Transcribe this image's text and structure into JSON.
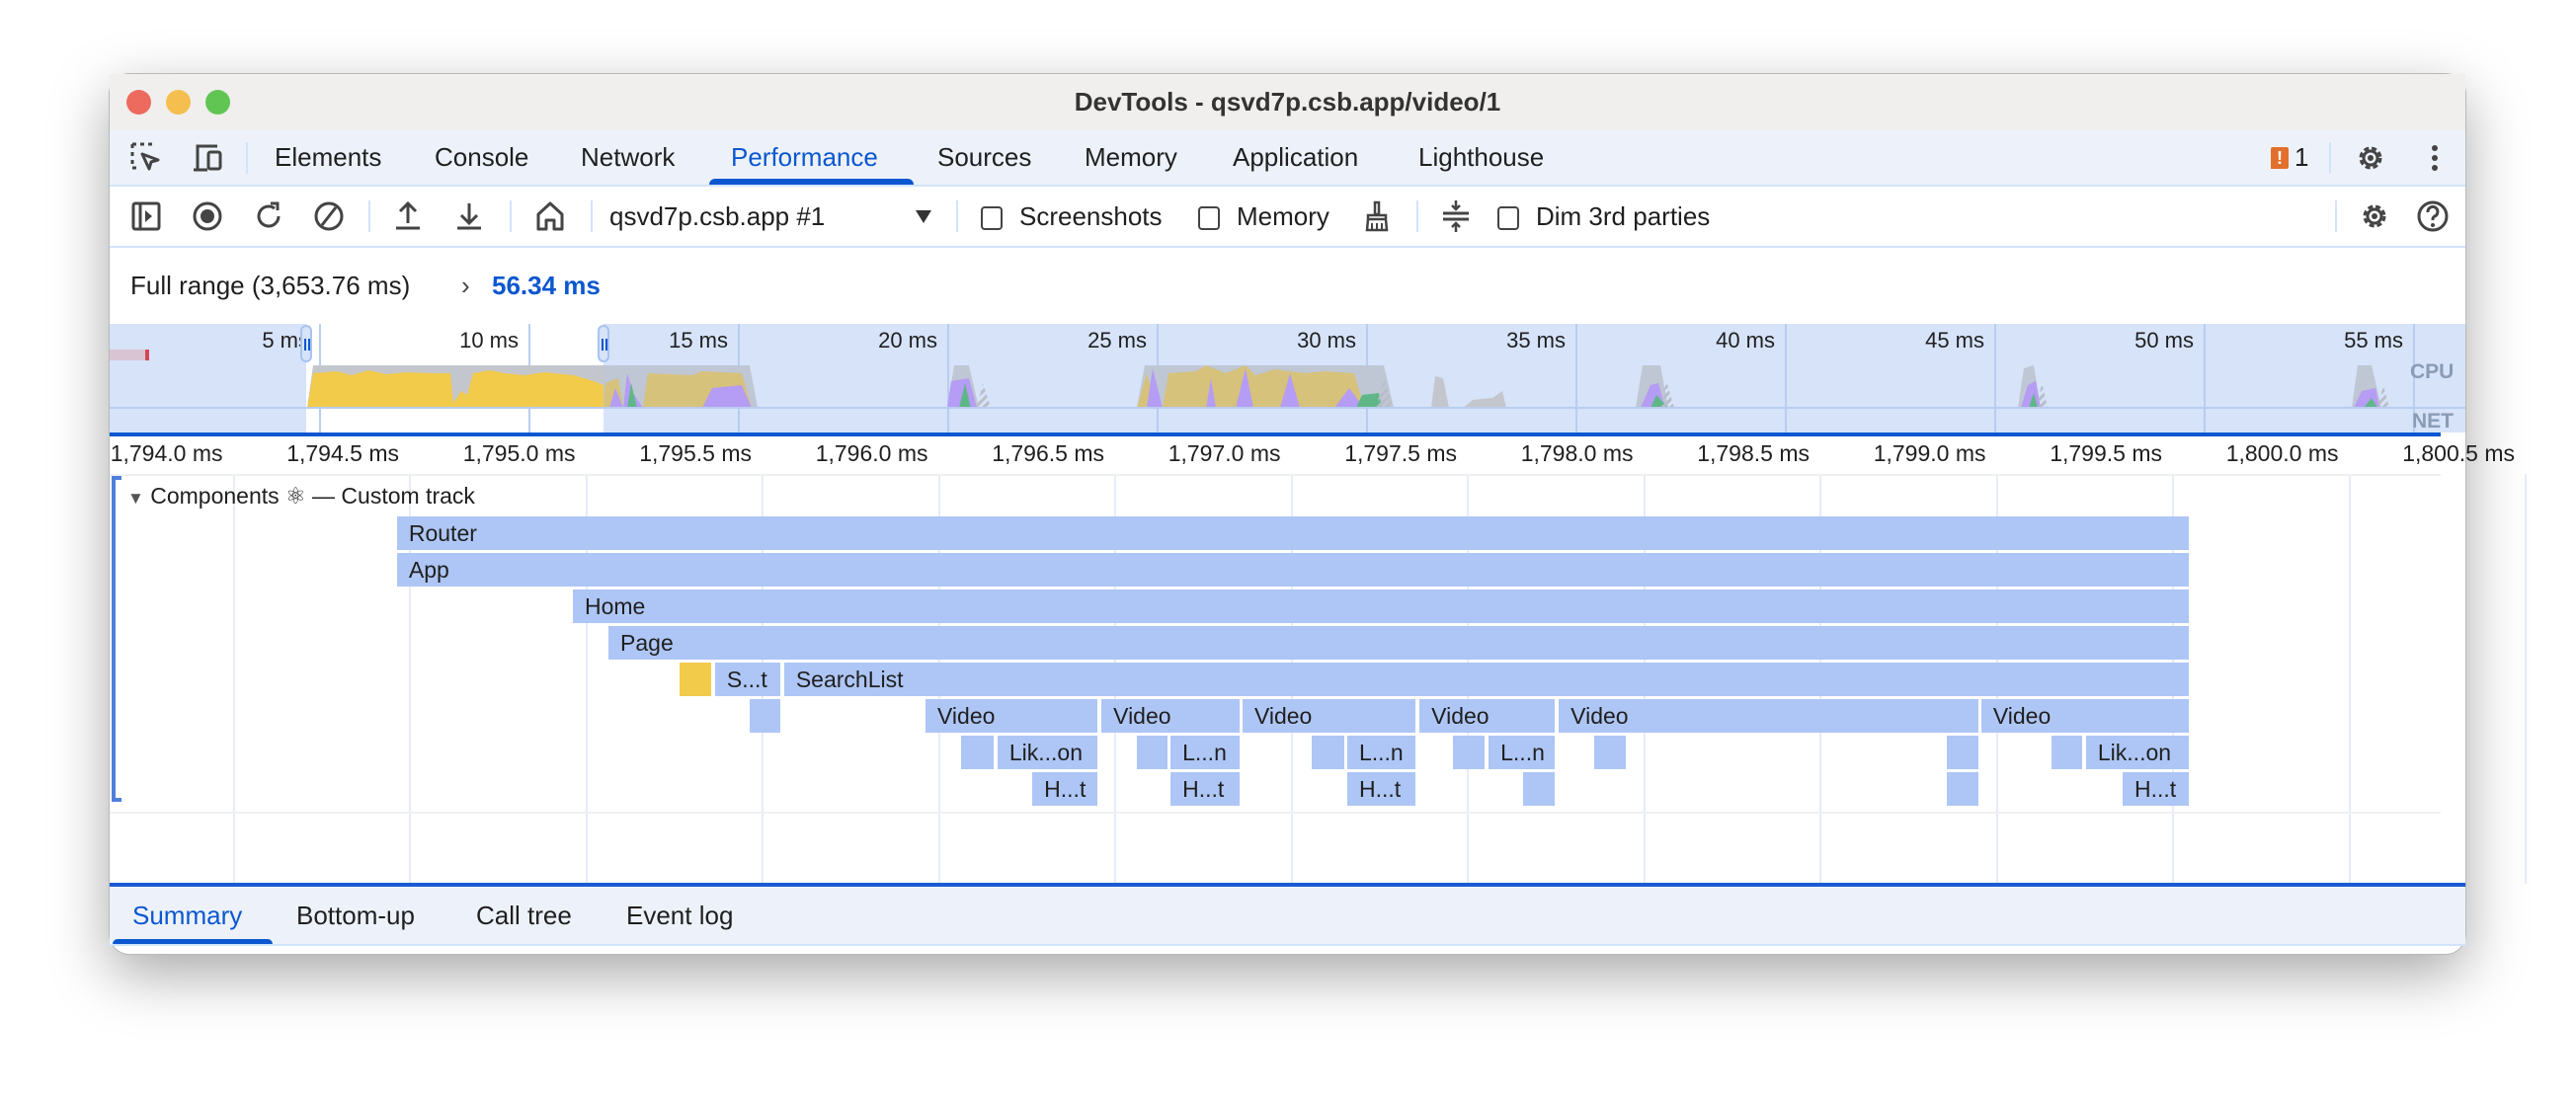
{
  "window": {
    "title": "DevTools - qsvd7p.csb.app/video/1"
  },
  "colors": {
    "accent": "#0b57d0",
    "bar": "#aec6f5",
    "highlight": "#f2cb4b",
    "close": "#ed6a5e",
    "minimize": "#f5bf4f",
    "zoom": "#61c554",
    "issue": "#e36f2c"
  },
  "tabs": [
    {
      "label": "Elements"
    },
    {
      "label": "Console"
    },
    {
      "label": "Network"
    },
    {
      "label": "Performance",
      "active": true
    },
    {
      "label": "Sources"
    },
    {
      "label": "Memory"
    },
    {
      "label": "Application"
    },
    {
      "label": "Lighthouse"
    }
  ],
  "tabbar_right": {
    "issues_count": "1",
    "icons": [
      "issue-icon",
      "settings-icon",
      "more-vert-icon"
    ]
  },
  "toolbar": {
    "icons": [
      "sidebar-toggle-icon",
      "record-icon",
      "reload-icon",
      "clear-icon",
      "upload-icon",
      "download-icon",
      "home-icon"
    ],
    "target_select": "qsvd7p.csb.app #1",
    "screenshots_label": "Screenshots",
    "screenshots_checked": false,
    "memory_label": "Memory",
    "memory_checked": false,
    "dim_label": "Dim 3rd parties",
    "dim_checked": false
  },
  "breadcrumb": {
    "full_range": "Full range (3,653.76 ms)",
    "separator": "›",
    "current": "56.34 ms"
  },
  "overview": {
    "ticks": [
      {
        "value": 5,
        "label": "5 ms"
      },
      {
        "value": 10,
        "label": "10 ms"
      },
      {
        "value": 15,
        "label": "15 ms"
      },
      {
        "value": 20,
        "label": "20 ms"
      },
      {
        "value": 25,
        "label": "25 ms"
      },
      {
        "value": 30,
        "label": "30 ms"
      },
      {
        "value": 35,
        "label": "35 ms"
      },
      {
        "value": 40,
        "label": "40 ms"
      },
      {
        "value": 45,
        "label": "45 ms"
      },
      {
        "value": 50,
        "label": "50 ms"
      },
      {
        "value": 55,
        "label": "55 ms"
      }
    ],
    "selection_ms": [
      4.7,
      11.8
    ],
    "cpu_label": "CPU",
    "net_label": "NET"
  },
  "ruler": {
    "ticks": [
      {
        "value": 1794.0,
        "label": "1,794.0 ms"
      },
      {
        "value": 1794.5,
        "label": "1,794.5 ms"
      },
      {
        "value": 1795.0,
        "label": "1,795.0 ms"
      },
      {
        "value": 1795.5,
        "label": "1,795.5 ms"
      },
      {
        "value": 1796.0,
        "label": "1,796.0 ms"
      },
      {
        "value": 1796.5,
        "label": "1,796.5 ms"
      },
      {
        "value": 1797.0,
        "label": "1,797.0 ms"
      },
      {
        "value": 1797.5,
        "label": "1,797.5 ms"
      },
      {
        "value": 1798.0,
        "label": "1,798.0 ms"
      },
      {
        "value": 1798.5,
        "label": "1,798.5 ms"
      },
      {
        "value": 1799.0,
        "label": "1,799.0 ms"
      },
      {
        "value": 1799.5,
        "label": "1,799.5 ms"
      },
      {
        "value": 1800.0,
        "label": "1,800.0 ms"
      },
      {
        "value": 1800.5,
        "label": "1,800.5 ms"
      }
    ]
  },
  "track": {
    "title": "Components ⚛ — Custom track",
    "rows": [
      [
        {
          "start": 1794.466,
          "end": 1799.553,
          "label": "Router"
        }
      ],
      [
        {
          "start": 1794.466,
          "end": 1799.553,
          "label": "App"
        }
      ],
      [
        {
          "start": 1794.965,
          "end": 1799.553,
          "label": "Home"
        }
      ],
      [
        {
          "start": 1795.066,
          "end": 1799.553,
          "label": "Page"
        }
      ],
      [
        {
          "start": 1795.268,
          "end": 1795.363,
          "label": "",
          "color": "#f2cb4b"
        },
        {
          "start": 1795.368,
          "end": 1795.559,
          "label": "S...t"
        },
        {
          "start": 1795.564,
          "end": 1799.553,
          "label": "SearchList"
        }
      ],
      [
        {
          "start": 1795.466,
          "end": 1795.559,
          "label": ""
        },
        {
          "start": 1795.965,
          "end": 1796.458,
          "label": "Video"
        },
        {
          "start": 1796.464,
          "end": 1796.861,
          "label": "Video"
        },
        {
          "start": 1796.864,
          "end": 1797.36,
          "label": "Video"
        },
        {
          "start": 1797.366,
          "end": 1797.755,
          "label": "Video"
        },
        {
          "start": 1797.761,
          "end": 1798.957,
          "label": "Video"
        },
        {
          "start": 1798.959,
          "end": 1799.553,
          "label": "Video"
        }
      ],
      [
        {
          "start": 1796.066,
          "end": 1796.164,
          "label": ""
        },
        {
          "start": 1796.169,
          "end": 1796.458,
          "label": "Lik...on"
        },
        {
          "start": 1796.564,
          "end": 1796.657,
          "label": ""
        },
        {
          "start": 1796.66,
          "end": 1796.861,
          "label": "L...n"
        },
        {
          "start": 1797.06,
          "end": 1797.158,
          "label": ""
        },
        {
          "start": 1797.161,
          "end": 1797.36,
          "label": "L...n"
        },
        {
          "start": 1797.461,
          "end": 1797.556,
          "label": ""
        },
        {
          "start": 1797.562,
          "end": 1797.755,
          "label": "L...n"
        },
        {
          "start": 1797.861,
          "end": 1797.957,
          "label": ""
        },
        {
          "start": 1798.861,
          "end": 1798.957,
          "label": ""
        },
        {
          "start": 1799.158,
          "end": 1799.251,
          "label": ""
        },
        {
          "start": 1799.256,
          "end": 1799.553,
          "label": "Lik...on"
        }
      ],
      [
        {
          "start": 1796.268,
          "end": 1796.458,
          "label": "H...t"
        },
        {
          "start": 1796.66,
          "end": 1796.861,
          "label": "H...t"
        },
        {
          "start": 1797.161,
          "end": 1797.36,
          "label": "H...t"
        },
        {
          "start": 1797.66,
          "end": 1797.755,
          "label": ""
        },
        {
          "start": 1798.861,
          "end": 1798.957,
          "label": ""
        },
        {
          "start": 1799.36,
          "end": 1799.553,
          "label": "H...t"
        }
      ]
    ]
  },
  "bottom_tabs": [
    {
      "label": "Summary",
      "active": true
    },
    {
      "label": "Bottom-up"
    },
    {
      "label": "Call tree"
    },
    {
      "label": "Event log"
    }
  ]
}
